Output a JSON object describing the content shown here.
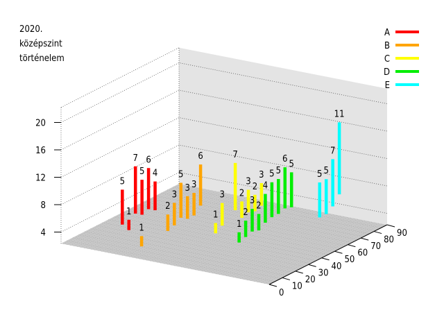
{
  "chart_data": {
    "type": "bar3d",
    "title_lines": [
      "2020.",
      "középszint",
      "történelem"
    ],
    "z_ticks": [
      "4",
      "8",
      "12",
      "16",
      "20"
    ],
    "x_ticks": [
      "0",
      "10",
      "20",
      "30",
      "40",
      "50",
      "60",
      "70",
      "80",
      "90"
    ],
    "grid": true,
    "legend_position": "top-right",
    "series": [
      {
        "name": "A",
        "color": "#ff0000",
        "points": [
          [
            15,
            5
          ],
          [
            20,
            1
          ],
          [
            25,
            7
          ],
          [
            30,
            5
          ],
          [
            35,
            6
          ],
          [
            40,
            4
          ]
        ]
      },
      {
        "name": "B",
        "color": "#ffa500",
        "points": [
          [
            5,
            1
          ],
          [
            25,
            2
          ],
          [
            30,
            3
          ],
          [
            35,
            5
          ],
          [
            40,
            3
          ],
          [
            45,
            3
          ],
          [
            50,
            6
          ]
        ]
      },
      {
        "name": "C",
        "color": "#ffff00",
        "points": [
          [
            35,
            1
          ],
          [
            40,
            3
          ],
          [
            50,
            7
          ],
          [
            55,
            2
          ],
          [
            60,
            3
          ],
          [
            65,
            2
          ],
          [
            70,
            3
          ]
        ]
      },
      {
        "name": "D",
        "color": "#00ee00",
        "points": [
          [
            30,
            1
          ],
          [
            35,
            2
          ],
          [
            40,
            3
          ],
          [
            45,
            2
          ],
          [
            50,
            4
          ],
          [
            55,
            5
          ],
          [
            60,
            5
          ],
          [
            65,
            6
          ],
          [
            70,
            5
          ]
        ]
      },
      {
        "name": "E",
        "color": "#00ffff",
        "points": [
          [
            65,
            5
          ],
          [
            70,
            5
          ],
          [
            75,
            7
          ],
          [
            80,
            11
          ]
        ]
      }
    ]
  }
}
